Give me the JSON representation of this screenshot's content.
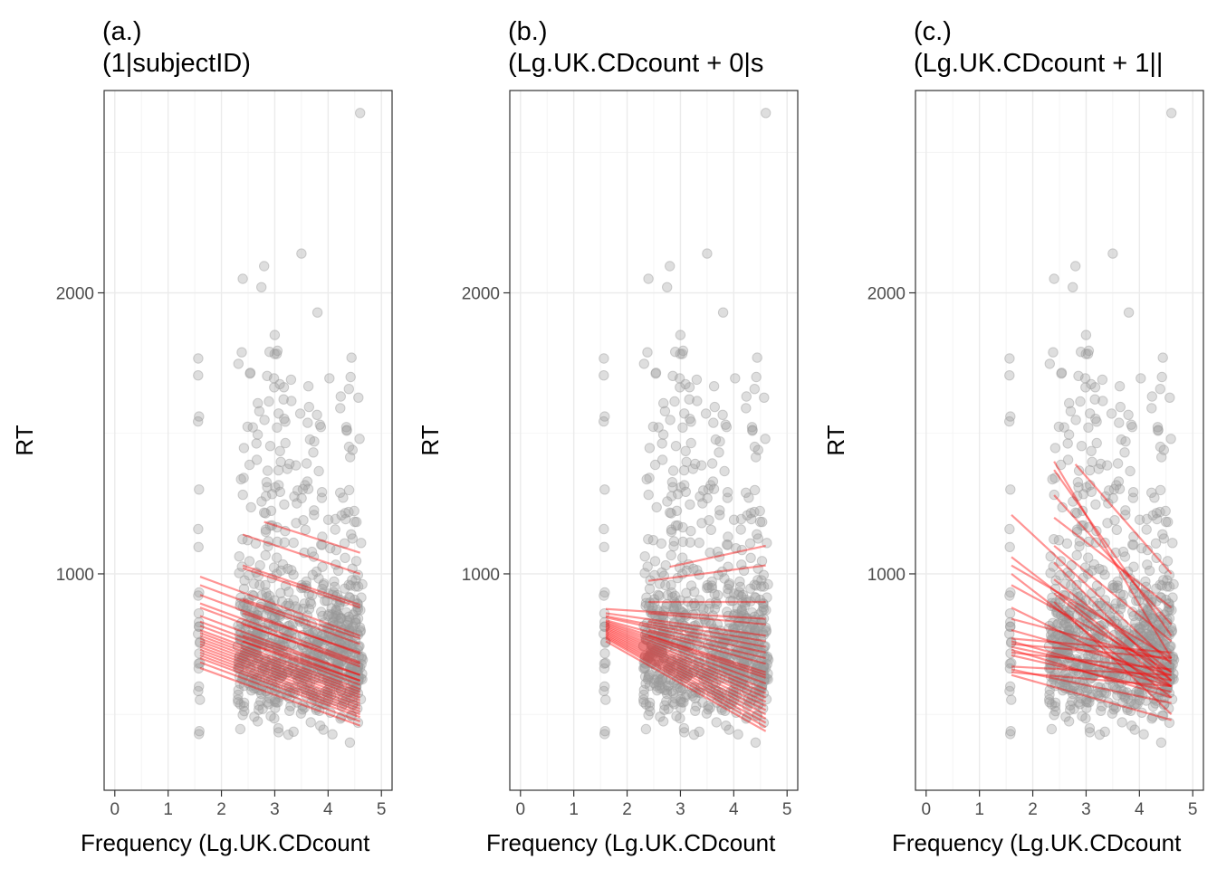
{
  "chart_data": [
    {
      "type": "scatter",
      "panel_label": "(a.)",
      "title": "(1|subjectID)",
      "xlabel": "Frequency (Lg.UK.CDcount",
      "ylabel": "RT",
      "xlim": [
        -0.2,
        5.2
      ],
      "ylim": [
        230,
        2720
      ],
      "xticks": [
        "0",
        "1",
        "2",
        "3",
        "4",
        "5"
      ],
      "yticks": [
        "1000",
        "2000"
      ],
      "grid": true,
      "points_note": "grey semi-transparent raw trials",
      "fit_lines": [
        {
          "x": [
            1.6,
            4.6
          ],
          "y": [
            990,
            780
          ]
        },
        {
          "x": [
            1.6,
            4.6
          ],
          "y": [
            960,
            750
          ]
        },
        {
          "x": [
            1.6,
            4.6
          ],
          "y": [
            925,
            715
          ]
        },
        {
          "x": [
            1.6,
            4.6
          ],
          "y": [
            895,
            685
          ]
        },
        {
          "x": [
            1.6,
            4.6
          ],
          "y": [
            880,
            670
          ]
        },
        {
          "x": [
            1.6,
            4.6
          ],
          "y": [
            850,
            640
          ]
        },
        {
          "x": [
            1.6,
            4.6
          ],
          "y": [
            830,
            620
          ]
        },
        {
          "x": [
            1.6,
            4.6
          ],
          "y": [
            815,
            605
          ]
        },
        {
          "x": [
            1.6,
            4.6
          ],
          "y": [
            800,
            590
          ]
        },
        {
          "x": [
            1.6,
            4.6
          ],
          "y": [
            790,
            580
          ]
        },
        {
          "x": [
            1.6,
            4.6
          ],
          "y": [
            780,
            570
          ]
        },
        {
          "x": [
            1.6,
            4.6
          ],
          "y": [
            770,
            560
          ]
        },
        {
          "x": [
            1.6,
            4.6
          ],
          "y": [
            760,
            550
          ]
        },
        {
          "x": [
            1.6,
            4.6
          ],
          "y": [
            750,
            540
          ]
        },
        {
          "x": [
            1.6,
            4.6
          ],
          "y": [
            740,
            530
          ]
        },
        {
          "x": [
            1.6,
            4.6
          ],
          "y": [
            730,
            520
          ]
        },
        {
          "x": [
            1.6,
            4.6
          ],
          "y": [
            720,
            510
          ]
        },
        {
          "x": [
            1.6,
            4.6
          ],
          "y": [
            710,
            500
          ]
        },
        {
          "x": [
            1.6,
            4.6
          ],
          "y": [
            700,
            490
          ]
        },
        {
          "x": [
            1.6,
            4.6
          ],
          "y": [
            685,
            475
          ]
        },
        {
          "x": [
            1.6,
            4.6
          ],
          "y": [
            665,
            460
          ]
        },
        {
          "x": [
            2.4,
            4.6
          ],
          "y": [
            1140,
            1000
          ]
        },
        {
          "x": [
            2.8,
            4.6
          ],
          "y": [
            1185,
            1075
          ]
        },
        {
          "x": [
            2.4,
            4.6
          ],
          "y": [
            1030,
            890
          ]
        },
        {
          "x": [
            2.4,
            4.6
          ],
          "y": [
            1020,
            880
          ]
        },
        {
          "x": [
            2.4,
            4.6
          ],
          "y": [
            910,
            770
          ]
        },
        {
          "x": [
            2.4,
            4.6
          ],
          "y": [
            860,
            720
          ]
        },
        {
          "x": [
            2.4,
            4.6
          ],
          "y": [
            820,
            680
          ]
        },
        {
          "x": [
            2.4,
            4.6
          ],
          "y": [
            780,
            640
          ]
        },
        {
          "x": [
            2.4,
            4.6
          ],
          "y": [
            760,
            620
          ]
        }
      ]
    },
    {
      "type": "scatter",
      "panel_label": "(b.)",
      "title": "(Lg.UK.CDcount + 0|s",
      "xlabel": "Frequency (Lg.UK.CDcount",
      "ylabel": "RT",
      "xlim": [
        -0.2,
        5.2
      ],
      "ylim": [
        230,
        2720
      ],
      "xticks": [
        "0",
        "1",
        "2",
        "3",
        "4",
        "5"
      ],
      "yticks": [
        "1000",
        "2000"
      ],
      "grid": true,
      "points_note": "grey semi-transparent raw trials",
      "fit_lines": [
        {
          "x": [
            1.6,
            4.6
          ],
          "y": [
            875,
            840
          ]
        },
        {
          "x": [
            1.6,
            4.6
          ],
          "y": [
            860,
            780
          ]
        },
        {
          "x": [
            1.6,
            4.6
          ],
          "y": [
            850,
            740
          ]
        },
        {
          "x": [
            1.6,
            4.6
          ],
          "y": [
            845,
            720
          ]
        },
        {
          "x": [
            1.6,
            4.6
          ],
          "y": [
            835,
            680
          ]
        },
        {
          "x": [
            1.6,
            4.6
          ],
          "y": [
            830,
            650
          ]
        },
        {
          "x": [
            1.6,
            4.6
          ],
          "y": [
            825,
            630
          ]
        },
        {
          "x": [
            1.6,
            4.6
          ],
          "y": [
            820,
            610
          ]
        },
        {
          "x": [
            1.6,
            4.6
          ],
          "y": [
            815,
            590
          ]
        },
        {
          "x": [
            1.6,
            4.6
          ],
          "y": [
            810,
            575
          ]
        },
        {
          "x": [
            1.6,
            4.6
          ],
          "y": [
            805,
            560
          ]
        },
        {
          "x": [
            1.6,
            4.6
          ],
          "y": [
            800,
            545
          ]
        },
        {
          "x": [
            1.6,
            4.6
          ],
          "y": [
            795,
            530
          ]
        },
        {
          "x": [
            1.6,
            4.6
          ],
          "y": [
            790,
            515
          ]
        },
        {
          "x": [
            1.6,
            4.6
          ],
          "y": [
            785,
            500
          ]
        },
        {
          "x": [
            1.6,
            4.6
          ],
          "y": [
            780,
            485
          ]
        },
        {
          "x": [
            1.6,
            4.6
          ],
          "y": [
            775,
            470
          ]
        },
        {
          "x": [
            1.6,
            4.6
          ],
          "y": [
            770,
            455
          ]
        },
        {
          "x": [
            1.6,
            4.6
          ],
          "y": [
            760,
            440
          ]
        },
        {
          "x": [
            2.8,
            4.6
          ],
          "y": [
            1025,
            1100
          ]
        },
        {
          "x": [
            2.4,
            4.6
          ],
          "y": [
            975,
            1030
          ]
        },
        {
          "x": [
            2.4,
            4.6
          ],
          "y": [
            900,
            900
          ]
        },
        {
          "x": [
            2.4,
            4.6
          ],
          "y": [
            860,
            820
          ]
        },
        {
          "x": [
            2.4,
            4.6
          ],
          "y": [
            830,
            760
          ]
        },
        {
          "x": [
            2.4,
            4.6
          ],
          "y": [
            800,
            700
          ]
        },
        {
          "x": [
            2.4,
            4.6
          ],
          "y": [
            780,
            640
          ]
        }
      ]
    },
    {
      "type": "scatter",
      "panel_label": "(c.)",
      "title": "(Lg.UK.CDcount + 1||",
      "xlabel": "Frequency (Lg.UK.CDcount",
      "ylabel": "RT",
      "xlim": [
        -0.2,
        5.2
      ],
      "ylim": [
        230,
        2720
      ],
      "xticks": [
        "0",
        "1",
        "2",
        "3",
        "4",
        "5"
      ],
      "yticks": [
        "1000",
        "2000"
      ],
      "grid": true,
      "points_note": "grey semi-transparent raw trials",
      "fit_lines": [
        {
          "x": [
            1.6,
            4.6
          ],
          "y": [
            1210,
            680
          ]
        },
        {
          "x": [
            1.6,
            4.6
          ],
          "y": [
            1060,
            620
          ]
        },
        {
          "x": [
            1.6,
            4.6
          ],
          "y": [
            1030,
            700
          ]
        },
        {
          "x": [
            1.6,
            4.6
          ],
          "y": [
            1000,
            560
          ]
        },
        {
          "x": [
            1.6,
            4.6
          ],
          "y": [
            960,
            650
          ]
        },
        {
          "x": [
            1.6,
            4.6
          ],
          "y": [
            880,
            600
          ]
        },
        {
          "x": [
            1.6,
            4.6
          ],
          "y": [
            840,
            690
          ]
        },
        {
          "x": [
            1.6,
            4.6
          ],
          "y": [
            800,
            640
          ]
        },
        {
          "x": [
            1.6,
            4.6
          ],
          "y": [
            770,
            720
          ]
        },
        {
          "x": [
            1.6,
            4.6
          ],
          "y": [
            760,
            600
          ]
        },
        {
          "x": [
            1.6,
            4.6
          ],
          "y": [
            750,
            700
          ]
        },
        {
          "x": [
            1.6,
            4.6
          ],
          "y": [
            740,
            620
          ]
        },
        {
          "x": [
            1.6,
            4.6
          ],
          "y": [
            730,
            560
          ]
        },
        {
          "x": [
            1.6,
            4.6
          ],
          "y": [
            720,
            660
          ]
        },
        {
          "x": [
            1.6,
            4.6
          ],
          "y": [
            710,
            580
          ]
        },
        {
          "x": [
            1.6,
            4.6
          ],
          "y": [
            670,
            640
          ]
        },
        {
          "x": [
            1.6,
            4.6
          ],
          "y": [
            660,
            540
          ]
        },
        {
          "x": [
            1.6,
            4.6
          ],
          "y": [
            650,
            600
          ]
        },
        {
          "x": [
            1.6,
            4.6
          ],
          "y": [
            640,
            480
          ]
        },
        {
          "x": [
            2.4,
            4.6
          ],
          "y": [
            1400,
            700
          ]
        },
        {
          "x": [
            2.4,
            4.6
          ],
          "y": [
            1370,
            780
          ]
        },
        {
          "x": [
            2.8,
            4.6
          ],
          "y": [
            1390,
            1000
          ]
        },
        {
          "x": [
            2.4,
            4.6
          ],
          "y": [
            1280,
            820
          ]
        },
        {
          "x": [
            2.4,
            4.6
          ],
          "y": [
            1200,
            880
          ]
        },
        {
          "x": [
            2.4,
            4.6
          ],
          "y": [
            1100,
            760
          ]
        },
        {
          "x": [
            2.4,
            4.6
          ],
          "y": [
            1040,
            620
          ]
        },
        {
          "x": [
            2.4,
            4.6
          ],
          "y": [
            980,
            650
          ]
        },
        {
          "x": [
            2.4,
            4.6
          ],
          "y": [
            930,
            600
          ]
        },
        {
          "x": [
            2.4,
            4.6
          ],
          "y": [
            900,
            500
          ]
        }
      ]
    }
  ]
}
